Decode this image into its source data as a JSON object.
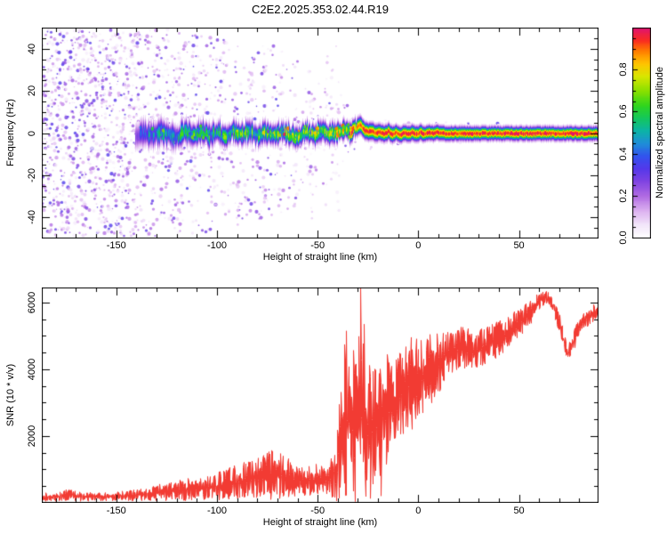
{
  "title": "C2E2.2025.353.02.44.R19",
  "chart_data": [
    {
      "id": "spectrogram",
      "type": "heatmap",
      "xlabel": "Height of straight line (km)",
      "ylabel": "Frequency (Hz)",
      "xlim": [
        -187,
        89.5
      ],
      "ylim": [
        -50,
        50
      ],
      "xticks": [
        -150,
        -100,
        -50,
        0,
        50
      ],
      "xminor_step": 10,
      "yticks": [
        -40,
        -20,
        0,
        20,
        40
      ],
      "yminor_step": 5,
      "grid": false,
      "colorbar": {
        "label": "Normalized spectral amplitude",
        "ticks": [
          "0.0",
          "0.2",
          "0.4",
          "0.6",
          "0.8"
        ],
        "tick_values": [
          0,
          0.2,
          0.4,
          0.6,
          0.8
        ],
        "minor_step": 0.05,
        "range": [
          0,
          1
        ]
      },
      "colormap_stops": [
        [
          0,
          "#ffffff"
        ],
        [
          0.06,
          "#f3e7fa"
        ],
        [
          0.13,
          "#dcb0f0"
        ],
        [
          0.2,
          "#b06ae2"
        ],
        [
          0.27,
          "#7f43e2"
        ],
        [
          0.33,
          "#5438ea"
        ],
        [
          0.39,
          "#3253ee"
        ],
        [
          0.45,
          "#1f8ed8"
        ],
        [
          0.51,
          "#0cb4a6"
        ],
        [
          0.57,
          "#14c75c"
        ],
        [
          0.63,
          "#2fd51e"
        ],
        [
          0.7,
          "#8ae000"
        ],
        [
          0.77,
          "#d9e600"
        ],
        [
          0.83,
          "#ffc400"
        ],
        [
          0.89,
          "#ff7d00"
        ],
        [
          0.94,
          "#fa2d20"
        ],
        [
          1,
          "#e01370"
        ]
      ],
      "noise": {
        "description": "broadband speckle noise, dense for heights below -140 km, thinning toward -30 km",
        "density_profile": [
          [
            -187,
            1
          ],
          [
            -141,
            1
          ],
          [
            -135,
            0.5
          ],
          [
            -112,
            0.42
          ],
          [
            -96,
            0.3
          ],
          [
            -72,
            0.22
          ],
          [
            -48,
            0.13
          ],
          [
            -33,
            0.06
          ],
          [
            -20,
            0.02
          ],
          [
            89.5,
            0.008
          ]
        ],
        "spread_profile_hz": [
          [
            -187,
            49
          ],
          [
            -115,
            49
          ],
          [
            -95,
            45
          ],
          [
            -75,
            43
          ],
          [
            -58,
            36
          ],
          [
            -45,
            27
          ],
          [
            -36,
            16
          ],
          [
            -28,
            9
          ],
          [
            0,
            6
          ],
          [
            89.5,
            3.5
          ]
        ],
        "plume_heights_km": [
          -131,
          -124,
          -118,
          -111,
          -103,
          -97,
          -90,
          -83,
          -76,
          -69,
          -61,
          -53,
          -46,
          -43,
          -40
        ],
        "blobs_per_column": 9,
        "max_amp": 0.34
      },
      "signal_track": [
        [
          -140,
          -1.0,
          0.33,
          3.4
        ],
        [
          -136,
          0.6,
          0.42,
          3.4
        ],
        [
          -132,
          -1.4,
          0.48,
          3.3
        ],
        [
          -128,
          1.1,
          0.5,
          3.2
        ],
        [
          -124,
          -0.6,
          0.53,
          3.2
        ],
        [
          -120,
          -1.9,
          0.5,
          3.2
        ],
        [
          -116,
          0.9,
          0.55,
          3.1
        ],
        [
          -112,
          -1.1,
          0.58,
          3.0
        ],
        [
          -108,
          1.4,
          0.55,
          3.0
        ],
        [
          -104,
          -0.9,
          0.58,
          3.0
        ],
        [
          -100,
          0.6,
          0.6,
          2.9
        ],
        [
          -96,
          -1.7,
          0.62,
          2.9
        ],
        [
          -92,
          1.2,
          0.6,
          2.8
        ],
        [
          -88,
          -0.6,
          0.64,
          2.8
        ],
        [
          -84,
          1.7,
          0.62,
          2.8
        ],
        [
          -80,
          -1.1,
          0.65,
          2.8
        ],
        [
          -76,
          0.4,
          0.67,
          2.8
        ],
        [
          -72,
          -1.4,
          0.65,
          2.7
        ],
        [
          -68,
          1.0,
          0.68,
          2.7
        ],
        [
          -64,
          -0.4,
          0.7,
          2.6
        ],
        [
          -60,
          -1.7,
          0.68,
          2.6
        ],
        [
          -56,
          0.9,
          0.7,
          2.6
        ],
        [
          -52,
          -1.0,
          0.71,
          2.6
        ],
        [
          -48,
          1.4,
          0.7,
          2.5
        ],
        [
          -44,
          -0.6,
          0.72,
          2.5
        ],
        [
          -40,
          1.0,
          0.75,
          2.5
        ],
        [
          -37,
          2.4,
          0.8,
          2.4
        ],
        [
          -34,
          0.6,
          0.85,
          2.4
        ],
        [
          -31,
          2.9,
          0.9,
          2.3
        ],
        [
          -29,
          4.3,
          0.92,
          2.3
        ],
        [
          -27,
          1.6,
          0.95,
          2.2
        ],
        [
          -25,
          0.6,
          0.97,
          2.2
        ],
        [
          -23,
          1.1,
          0.95,
          2.2
        ],
        [
          -21,
          0.1,
          0.97,
          2.2
        ],
        [
          -19,
          0.6,
          0.98,
          2.1
        ],
        [
          -17,
          -0.5,
          0.96,
          2.1
        ],
        [
          -15,
          0.9,
          0.98,
          2.1
        ],
        [
          -13,
          -0.7,
          1.0,
          2.1
        ],
        [
          -11,
          0.6,
          0.97,
          2.0
        ],
        [
          -9,
          -0.9,
          0.99,
          2.0
        ],
        [
          -7,
          0.4,
          1.0,
          2.0
        ],
        [
          -5,
          -0.5,
          0.98,
          2.0
        ],
        [
          -3,
          0.6,
          1.0,
          2.0
        ],
        [
          -1,
          -0.3,
          0.99,
          2.0
        ],
        [
          1,
          0.7,
          1.0,
          2.0
        ],
        [
          3,
          -0.4,
          0.98,
          1.9
        ],
        [
          5,
          0.5,
          1.0,
          1.9
        ],
        [
          7,
          -0.2,
          0.99,
          1.9
        ],
        [
          9,
          0.4,
          1.0,
          1.9
        ],
        [
          11,
          -0.1,
          1.0,
          1.9
        ],
        [
          13,
          0,
          1.0,
          1.85
        ],
        [
          20,
          0,
          1.0,
          1.85
        ],
        [
          30,
          0,
          1.0,
          1.8
        ],
        [
          45,
          0,
          1.0,
          1.8
        ],
        [
          60,
          0,
          1.0,
          1.8
        ],
        [
          75,
          0,
          1.0,
          1.8
        ],
        [
          89.5,
          0,
          1.0,
          1.8
        ]
      ]
    },
    {
      "id": "snr",
      "type": "line",
      "color": "#f23b33",
      "xlabel": "Height of straight line (km)",
      "ylabel": "SNR (10 * v/v)",
      "xlim": [
        -187,
        89.5
      ],
      "ylim": [
        0,
        6453
      ],
      "xticks": [
        -150,
        -100,
        -50,
        0,
        50
      ],
      "xminor_step": 10,
      "yticks": [
        2000,
        4000,
        6000
      ],
      "yminor_step": 500,
      "grid": false,
      "envelope": [
        [
          -187,
          170,
          130
        ],
        [
          -178,
          185,
          140
        ],
        [
          -174,
          250,
          190
        ],
        [
          -168,
          185,
          140
        ],
        [
          -158,
          185,
          140
        ],
        [
          -150,
          200,
          150
        ],
        [
          -143,
          215,
          160
        ],
        [
          -136,
          255,
          200
        ],
        [
          -129,
          310,
          250
        ],
        [
          -122,
          360,
          300
        ],
        [
          -115,
          395,
          340
        ],
        [
          -108,
          430,
          380
        ],
        [
          -101,
          490,
          420
        ],
        [
          -95,
          560,
          480
        ],
        [
          -89,
          640,
          550
        ],
        [
          -83,
          710,
          610
        ],
        [
          -77,
          790,
          690
        ],
        [
          -72,
          870,
          790
        ],
        [
          -68,
          810,
          710
        ],
        [
          -63,
          690,
          540
        ],
        [
          -58,
          630,
          460
        ],
        [
          -53,
          650,
          470
        ],
        [
          -48,
          710,
          530
        ],
        [
          -44,
          780,
          620
        ],
        [
          -41,
          1000,
          900
        ],
        [
          -39,
          1900,
          1700
        ],
        [
          -37,
          2500,
          2300
        ],
        [
          -35,
          2400,
          2200
        ],
        [
          -33,
          2400,
          2200
        ],
        [
          -31,
          2700,
          2450
        ],
        [
          -29,
          2900,
          2500
        ],
        [
          -27,
          2500,
          2100
        ],
        [
          -25,
          2300,
          1850
        ],
        [
          -23,
          2400,
          1850
        ],
        [
          -21,
          2500,
          1950
        ],
        [
          -19,
          2650,
          1850
        ],
        [
          -17,
          2850,
          1700
        ],
        [
          -15,
          2800,
          1700
        ],
        [
          -13,
          2950,
          1600
        ],
        [
          -11,
          3150,
          1500
        ],
        [
          -9,
          3250,
          1500
        ],
        [
          -7,
          3400,
          1500
        ],
        [
          -5,
          3550,
          1550
        ],
        [
          -3,
          3500,
          1400
        ],
        [
          -1,
          3600,
          1350
        ],
        [
          1,
          3700,
          1250
        ],
        [
          4,
          3850,
          1150
        ],
        [
          7,
          4050,
          1050
        ],
        [
          10,
          4250,
          950
        ],
        [
          13,
          4400,
          850
        ],
        [
          16,
          4500,
          780
        ],
        [
          19,
          4600,
          700
        ],
        [
          22,
          4650,
          650
        ],
        [
          25,
          4600,
          620
        ],
        [
          28,
          4550,
          620
        ],
        [
          31,
          4650,
          600
        ],
        [
          34,
          4750,
          570
        ],
        [
          37,
          4850,
          550
        ],
        [
          40,
          4900,
          550
        ],
        [
          43,
          5050,
          500
        ],
        [
          46,
          5250,
          450
        ],
        [
          49,
          5350,
          430
        ],
        [
          52,
          5500,
          420
        ],
        [
          55,
          5650,
          380
        ],
        [
          58,
          5900,
          320
        ],
        [
          61,
          6100,
          230
        ],
        [
          63,
          6150,
          200
        ],
        [
          65,
          6050,
          250
        ],
        [
          67,
          5900,
          280
        ],
        [
          69,
          5550,
          320
        ],
        [
          71,
          5100,
          320
        ],
        [
          73,
          4700,
          300
        ],
        [
          74,
          4450,
          280
        ],
        [
          76,
          4700,
          300
        ],
        [
          78,
          5000,
          300
        ],
        [
          80,
          5300,
          280
        ],
        [
          82,
          5450,
          270
        ],
        [
          85,
          5600,
          260
        ],
        [
          87,
          5700,
          250
        ],
        [
          89,
          5750,
          250
        ]
      ]
    }
  ]
}
